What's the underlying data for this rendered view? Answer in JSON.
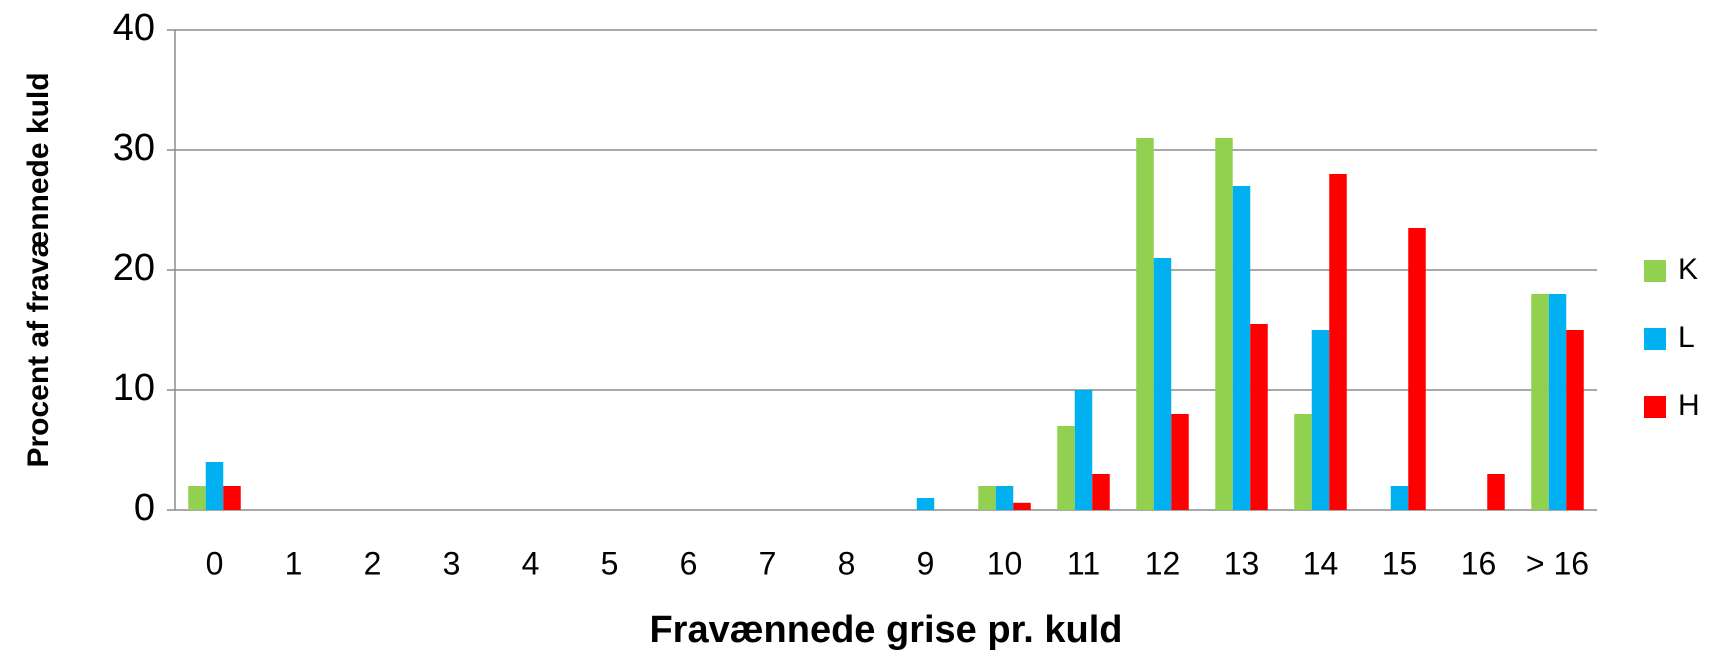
{
  "chart_data": {
    "type": "bar",
    "x_label": "Fravænnede grise pr. kuld",
    "y_label": "Procent af fravænnede kuld",
    "categories": [
      "0",
      "1",
      "2",
      "3",
      "4",
      "5",
      "6",
      "7",
      "8",
      "9",
      "10",
      "11",
      "12",
      "13",
      "14",
      "15",
      "16",
      "> 16"
    ],
    "series": [
      {
        "name": "K",
        "color": "#92d050",
        "values": [
          2,
          0,
          0,
          0,
          0,
          0,
          0,
          0,
          0,
          0,
          2,
          7,
          31,
          31,
          8,
          0,
          0,
          18
        ]
      },
      {
        "name": "L",
        "color": "#00b0f0",
        "values": [
          4,
          0,
          0,
          0,
          0,
          0,
          0,
          0,
          0,
          1,
          2,
          10,
          21,
          27,
          15,
          2,
          0,
          18
        ]
      },
      {
        "name": "H",
        "color": "#ff0000",
        "values": [
          2,
          0,
          0,
          0,
          0,
          0,
          0,
          0,
          0,
          0,
          0.6,
          3,
          8,
          15.5,
          28,
          23.5,
          3,
          15
        ]
      }
    ],
    "ylim": [
      0,
      40
    ],
    "yticks": [
      0,
      10,
      20,
      30,
      40
    ],
    "grid": true,
    "legend": "right"
  }
}
